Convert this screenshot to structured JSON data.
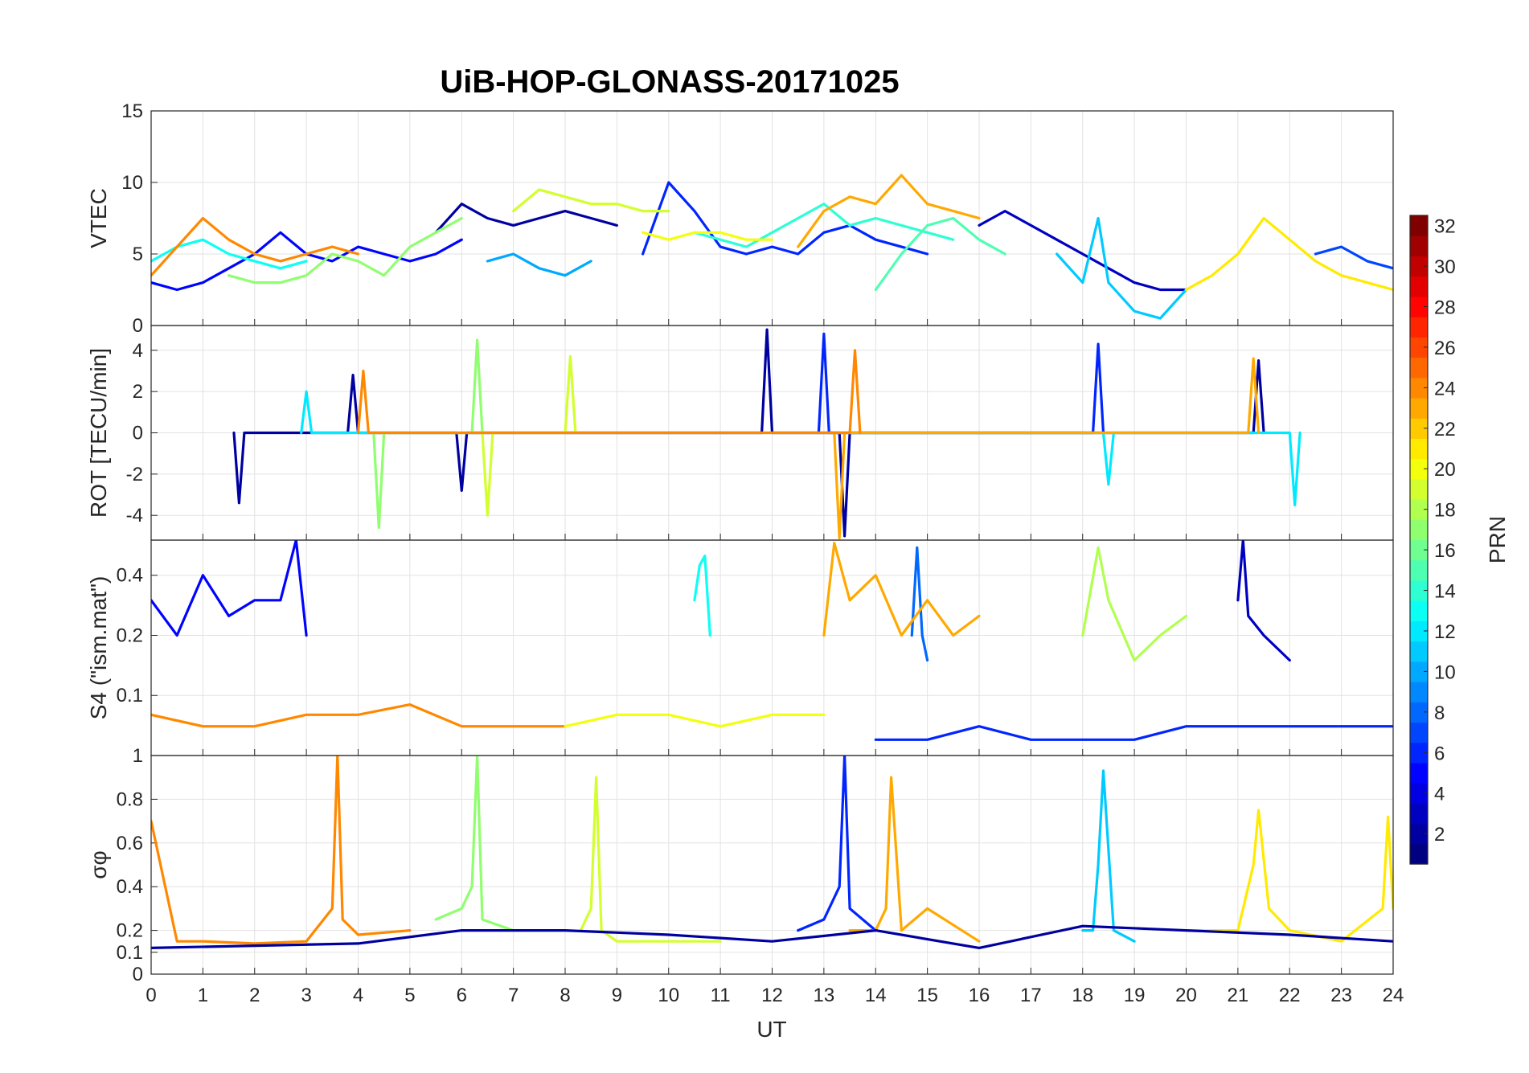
{
  "chart_data": {
    "type": "line",
    "title": "UiB-HOP-GLONASS-20171025",
    "xlabel": "UT",
    "xlim": [
      0,
      24
    ],
    "x_ticks": [
      "0",
      "1",
      "2",
      "3",
      "4",
      "5",
      "6",
      "7",
      "8",
      "9",
      "10",
      "11",
      "12",
      "13",
      "14",
      "15",
      "16",
      "17",
      "18",
      "19",
      "20",
      "21",
      "22",
      "23",
      "24"
    ],
    "grid": true,
    "colorbar": {
      "label": "PRN",
      "range": [
        1,
        32
      ],
      "ticks": [
        "2",
        "4",
        "6",
        "8",
        "10",
        "12",
        "14",
        "16",
        "18",
        "20",
        "22",
        "24",
        "26",
        "28",
        "30",
        "32"
      ],
      "colormap": "jet",
      "placement": "right"
    },
    "panels": [
      {
        "ylabel": "VTEC",
        "ylim": [
          0,
          15
        ],
        "y_ticks": [
          "0",
          "5",
          "10",
          "15"
        ],
        "y_tick_values": [
          0,
          5,
          10,
          15
        ],
        "series": [
          {
            "prn": 2,
            "x": [
              5.5,
              6.0,
              6.5,
              7.0,
              7.5,
              8.0,
              8.5,
              9.0
            ],
            "y": [
              6.5,
              8.5,
              7.5,
              7.0,
              7.5,
              8.0,
              7.5,
              7.0
            ]
          },
          {
            "prn": 3,
            "x": [
              16.0,
              16.5,
              17.0,
              17.5,
              18.0,
              18.5,
              19.0,
              19.5,
              20.0
            ],
            "y": [
              7.0,
              8.0,
              7.0,
              6.0,
              5.0,
              4.0,
              3.0,
              2.5,
              2.5
            ]
          },
          {
            "prn": 5,
            "x": [
              0.0,
              0.5,
              1.0,
              1.5,
              2.0,
              2.5,
              3.0,
              3.5,
              4.0,
              4.5,
              5.0,
              5.5,
              6.0
            ],
            "y": [
              3.0,
              2.5,
              3.0,
              4.0,
              5.0,
              6.5,
              5.0,
              4.5,
              5.5,
              5.0,
              4.5,
              5.0,
              6.0
            ]
          },
          {
            "prn": 6,
            "x": [
              9.5,
              10.0,
              10.5,
              11.0,
              11.5,
              12.0,
              12.5,
              13.0,
              13.5,
              14.0,
              14.5,
              15.0
            ],
            "y": [
              5.0,
              10.0,
              8.0,
              5.5,
              5.0,
              5.5,
              5.0,
              6.5,
              7.0,
              6.0,
              5.5,
              5.0
            ]
          },
          {
            "prn": 7,
            "x": [
              22.5,
              23.0,
              23.5,
              24.0
            ],
            "y": [
              5.0,
              5.5,
              4.5,
              4.0
            ]
          },
          {
            "prn": 10,
            "x": [
              6.5,
              7.0,
              7.5,
              8.0,
              8.5
            ],
            "y": [
              4.5,
              5.0,
              4.0,
              3.5,
              4.5
            ]
          },
          {
            "prn": 11,
            "x": [
              17.5,
              18.0,
              18.3,
              18.5,
              19.0,
              19.5,
              20.0
            ],
            "y": [
              5.0,
              3.0,
              7.5,
              3.0,
              1.0,
              0.5,
              2.5
            ]
          },
          {
            "prn": 13,
            "x": [
              0.0,
              0.5,
              1.0,
              1.5,
              2.0,
              2.5,
              3.0
            ],
            "y": [
              4.5,
              5.5,
              6.0,
              5.0,
              4.5,
              4.0,
              4.5
            ]
          },
          {
            "prn": 14,
            "x": [
              10.5,
              11.0,
              11.5,
              12.0,
              12.5,
              13.0,
              13.5,
              14.0,
              14.5,
              15.0,
              15.5
            ],
            "y": [
              6.5,
              6.0,
              5.5,
              6.5,
              7.5,
              8.5,
              7.0,
              7.5,
              7.0,
              6.5,
              6.0
            ]
          },
          {
            "prn": 15,
            "x": [
              14.0,
              14.5,
              15.0,
              15.5,
              16.0,
              16.5
            ],
            "y": [
              2.5,
              5.0,
              7.0,
              7.5,
              6.0,
              5.0
            ]
          },
          {
            "prn": 17,
            "x": [
              1.5,
              2.0,
              2.5,
              3.0,
              3.5,
              4.0,
              4.5,
              5.0,
              5.5,
              6.0
            ],
            "y": [
              3.5,
              3.0,
              3.0,
              3.5,
              5.0,
              4.5,
              3.5,
              5.5,
              6.5,
              7.5
            ]
          },
          {
            "prn": 19,
            "x": [
              7.0,
              7.5,
              8.0,
              8.5,
              9.0,
              9.5,
              10.0
            ],
            "y": [
              8.0,
              9.5,
              9.0,
              8.5,
              8.5,
              8.0,
              8.0
            ]
          },
          {
            "prn": 20,
            "x": [
              9.5,
              10.0,
              10.5,
              11.0,
              11.5,
              12.0
            ],
            "y": [
              6.5,
              6.0,
              6.5,
              6.5,
              6.0,
              6.0
            ]
          },
          {
            "prn": 21,
            "x": [
              20.0,
              20.5,
              21.0,
              21.5,
              22.0,
              22.5,
              23.0,
              23.5,
              24.0
            ],
            "y": [
              2.5,
              3.5,
              5.0,
              7.5,
              6.0,
              4.5,
              3.5,
              3.0,
              2.5
            ]
          },
          {
            "prn": 23,
            "x": [
              12.5,
              13.0,
              13.5,
              14.0,
              14.5,
              15.0,
              15.5,
              16.0
            ],
            "y": [
              5.5,
              8.0,
              9.0,
              8.5,
              10.5,
              8.5,
              8.0,
              7.5
            ]
          },
          {
            "prn": 24,
            "x": [
              0.0,
              0.5,
              1.0,
              1.5,
              2.0,
              2.5,
              3.0,
              3.5,
              4.0
            ],
            "y": [
              3.5,
              5.5,
              7.5,
              6.0,
              5.0,
              4.5,
              5.0,
              5.5,
              5.0
            ]
          }
        ]
      },
      {
        "ylabel": "ROT [TECU/min]",
        "ylim": [
          -5.2,
          5.2
        ],
        "y_ticks": [
          "-4",
          "-2",
          "0",
          "2",
          "4"
        ],
        "y_tick_values": [
          -4,
          -2,
          0,
          2,
          4
        ],
        "series": [
          {
            "prn": 2,
            "x": [
              1.6,
              1.7,
              1.8,
              3.8,
              3.9,
              4.0,
              5.9,
              6.0,
              6.1,
              11.8,
              11.9,
              12.0,
              13.3,
              13.4,
              13.5,
              21.3,
              21.4,
              21.5
            ],
            "y": [
              0,
              -3.4,
              0,
              0,
              2.8,
              0,
              0,
              -2.8,
              0,
              0,
              5.0,
              0,
              0,
              -5.0,
              0,
              0,
              3.5,
              0
            ]
          },
          {
            "prn": 6,
            "x": [
              12.9,
              13.0,
              13.1,
              18.2,
              18.3,
              18.4
            ],
            "y": [
              0,
              4.8,
              0,
              0,
              4.3,
              0
            ]
          },
          {
            "prn": 12,
            "x": [
              2.9,
              3.0,
              3.1,
              18.4,
              18.5,
              18.6,
              22.0,
              22.1,
              22.2
            ],
            "y": [
              0,
              2.0,
              0,
              0,
              -2.5,
              0,
              0,
              -3.5,
              0
            ]
          },
          {
            "prn": 17,
            "x": [
              4.3,
              4.4,
              4.5,
              6.2,
              6.3,
              6.4
            ],
            "y": [
              0,
              -4.6,
              0,
              0,
              4.5,
              0
            ]
          },
          {
            "prn": 19,
            "x": [
              6.4,
              6.5,
              6.6,
              8.0,
              8.1,
              8.2
            ],
            "y": [
              0,
              -4.0,
              0,
              0,
              3.7,
              0
            ]
          },
          {
            "prn": 23,
            "x": [
              13.2,
              13.3,
              13.4,
              21.2,
              21.3,
              21.4
            ],
            "y": [
              0,
              -5.1,
              0,
              0,
              3.6,
              0
            ]
          },
          {
            "prn": 24,
            "x": [
              4.0,
              4.1,
              4.2,
              13.5,
              13.6,
              13.7
            ],
            "y": [
              0,
              3.0,
              0,
              0,
              4.0,
              0
            ]
          }
        ]
      },
      {
        "ylabel": "S4 (\"ism.mat\")",
        "ylim": [
          0.05,
          0.6
        ],
        "y_ticks": [
          "0.1",
          "0.2",
          "0.4"
        ],
        "y_tick_values": [
          0.1,
          0.2,
          0.4
        ],
        "y_scale": "log",
        "series": [
          {
            "prn": 5,
            "x": [
              0.0,
              0.5,
              1.0,
              1.5,
              2.0,
              2.5,
              2.8,
              3.0
            ],
            "y": [
              0.3,
              0.2,
              0.4,
              0.25,
              0.3,
              0.3,
              0.6,
              0.2
            ]
          },
          {
            "prn": 3,
            "x": [
              21.0,
              21.1,
              21.2,
              21.5,
              22.0
            ],
            "y": [
              0.3,
              0.6,
              0.25,
              0.2,
              0.15
            ]
          },
          {
            "prn": 8,
            "x": [
              14.7,
              14.8,
              14.9,
              15.0
            ],
            "y": [
              0.2,
              0.55,
              0.2,
              0.15
            ]
          },
          {
            "prn": 13,
            "x": [
              10.5,
              10.6,
              10.7,
              10.8
            ],
            "y": [
              0.3,
              0.45,
              0.5,
              0.2
            ]
          },
          {
            "prn": 23,
            "x": [
              13.0,
              13.2,
              13.5,
              14.0,
              14.5,
              15.0,
              15.5,
              16.0
            ],
            "y": [
              0.2,
              0.58,
              0.3,
              0.4,
              0.2,
              0.3,
              0.2,
              0.25
            ]
          },
          {
            "prn": 18,
            "x": [
              18.0,
              18.3,
              18.5,
              19.0,
              19.5,
              20.0
            ],
            "y": [
              0.2,
              0.55,
              0.3,
              0.15,
              0.2,
              0.25
            ]
          },
          {
            "prn": 24,
            "x": [
              0.0,
              1.0,
              2.0,
              3.0,
              4.0,
              5.0,
              6.0,
              7.0,
              8.0
            ],
            "y": [
              0.08,
              0.07,
              0.07,
              0.08,
              0.08,
              0.09,
              0.07,
              0.07,
              0.07
            ]
          },
          {
            "prn": 20,
            "x": [
              8.0,
              9.0,
              10.0,
              11.0,
              12.0,
              13.0
            ],
            "y": [
              0.07,
              0.08,
              0.08,
              0.07,
              0.08,
              0.08
            ]
          },
          {
            "prn": 6,
            "x": [
              14.0,
              15.0,
              16.0,
              17.0,
              18.0,
              19.0,
              20.0,
              21.0,
              22.0,
              23.0,
              24.0
            ],
            "y": [
              0.06,
              0.06,
              0.07,
              0.06,
              0.06,
              0.06,
              0.07,
              0.07,
              0.07,
              0.07,
              0.07
            ]
          }
        ]
      },
      {
        "ylabel": "σφ",
        "ylim": [
          0,
          1
        ],
        "y_ticks": [
          "0",
          "0.1",
          "0.2",
          "0.4",
          "0.6",
          "0.8",
          "1"
        ],
        "y_tick_values": [
          0,
          0.1,
          0.2,
          0.4,
          0.6,
          0.8,
          1
        ],
        "series": [
          {
            "prn": 24,
            "x": [
              0.0,
              0.5,
              1.0,
              2.0,
              3.0,
              3.5,
              3.6,
              3.7,
              4.0,
              5.0
            ],
            "y": [
              0.7,
              0.15,
              0.15,
              0.14,
              0.15,
              0.3,
              1.0,
              0.25,
              0.18,
              0.2
            ]
          },
          {
            "prn": 17,
            "x": [
              5.5,
              6.0,
              6.2,
              6.3,
              6.4,
              7.0,
              8.0
            ],
            "y": [
              0.25,
              0.3,
              0.4,
              1.0,
              0.25,
              0.2,
              0.2
            ]
          },
          {
            "prn": 19,
            "x": [
              8.3,
              8.5,
              8.6,
              8.7,
              9.0,
              10.0,
              11.0
            ],
            "y": [
              0.2,
              0.3,
              0.9,
              0.2,
              0.15,
              0.15,
              0.15
            ]
          },
          {
            "prn": 6,
            "x": [
              12.5,
              13.0,
              13.3,
              13.4,
              13.5,
              14.0
            ],
            "y": [
              0.2,
              0.25,
              0.4,
              1.0,
              0.3,
              0.2
            ]
          },
          {
            "prn": 23,
            "x": [
              13.5,
              14.0,
              14.2,
              14.3,
              14.5,
              15.0,
              16.0
            ],
            "y": [
              0.2,
              0.2,
              0.3,
              0.9,
              0.2,
              0.3,
              0.15
            ]
          },
          {
            "prn": 11,
            "x": [
              18.0,
              18.2,
              18.3,
              18.4,
              18.6,
              19.0
            ],
            "y": [
              0.2,
              0.2,
              0.5,
              0.93,
              0.2,
              0.15
            ]
          },
          {
            "prn": 21,
            "x": [
              20.0,
              21.0,
              21.3,
              21.4,
              21.6,
              22.0,
              23.0,
              23.8,
              23.9,
              24.0
            ],
            "y": [
              0.2,
              0.2,
              0.5,
              0.75,
              0.3,
              0.2,
              0.15,
              0.3,
              0.72,
              0.3
            ]
          },
          {
            "prn": 2,
            "x": [
              0.0,
              2.0,
              4.0,
              6.0,
              8.0,
              10.0,
              12.0,
              14.0,
              16.0,
              18.0,
              20.0,
              22.0,
              24.0
            ],
            "y": [
              0.12,
              0.13,
              0.14,
              0.2,
              0.2,
              0.18,
              0.15,
              0.2,
              0.12,
              0.22,
              0.2,
              0.18,
              0.15
            ]
          }
        ]
      }
    ]
  }
}
